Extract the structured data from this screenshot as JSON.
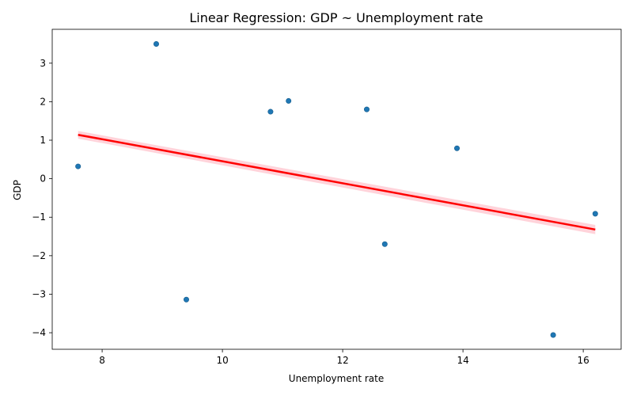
{
  "chart_data": {
    "type": "scatter",
    "title": "Linear Regression: GDP ~ Unemployment rate",
    "xlabel": "Unemployment rate",
    "ylabel": "GDP",
    "xlim": [
      7.17,
      16.63
    ],
    "ylim": [
      -4.43,
      3.88
    ],
    "xticks": [
      8,
      10,
      12,
      14,
      16
    ],
    "yticks": [
      -4,
      -3,
      -2,
      -1,
      0,
      1,
      2,
      3
    ],
    "grid": false,
    "points": [
      {
        "x": 7.6,
        "y": 0.32
      },
      {
        "x": 8.9,
        "y": 3.5
      },
      {
        "x": 9.4,
        "y": -3.14
      },
      {
        "x": 10.8,
        "y": 1.74
      },
      {
        "x": 11.1,
        "y": 2.02
      },
      {
        "x": 12.4,
        "y": 1.8
      },
      {
        "x": 12.7,
        "y": -1.7
      },
      {
        "x": 13.9,
        "y": 0.79
      },
      {
        "x": 15.5,
        "y": -4.06
      },
      {
        "x": 16.2,
        "y": -0.91
      }
    ],
    "regression": {
      "x": [
        7.6,
        16.2
      ],
      "y": [
        1.14,
        -1.32
      ]
    },
    "confidence_band": {
      "x": [
        7.6,
        16.2
      ],
      "upper": [
        1.24,
        -1.2
      ],
      "lower": [
        1.04,
        -1.44
      ]
    },
    "colors": {
      "points": "#1f77b4",
      "line": "#ff0000",
      "band": "#ffc0cb"
    }
  }
}
